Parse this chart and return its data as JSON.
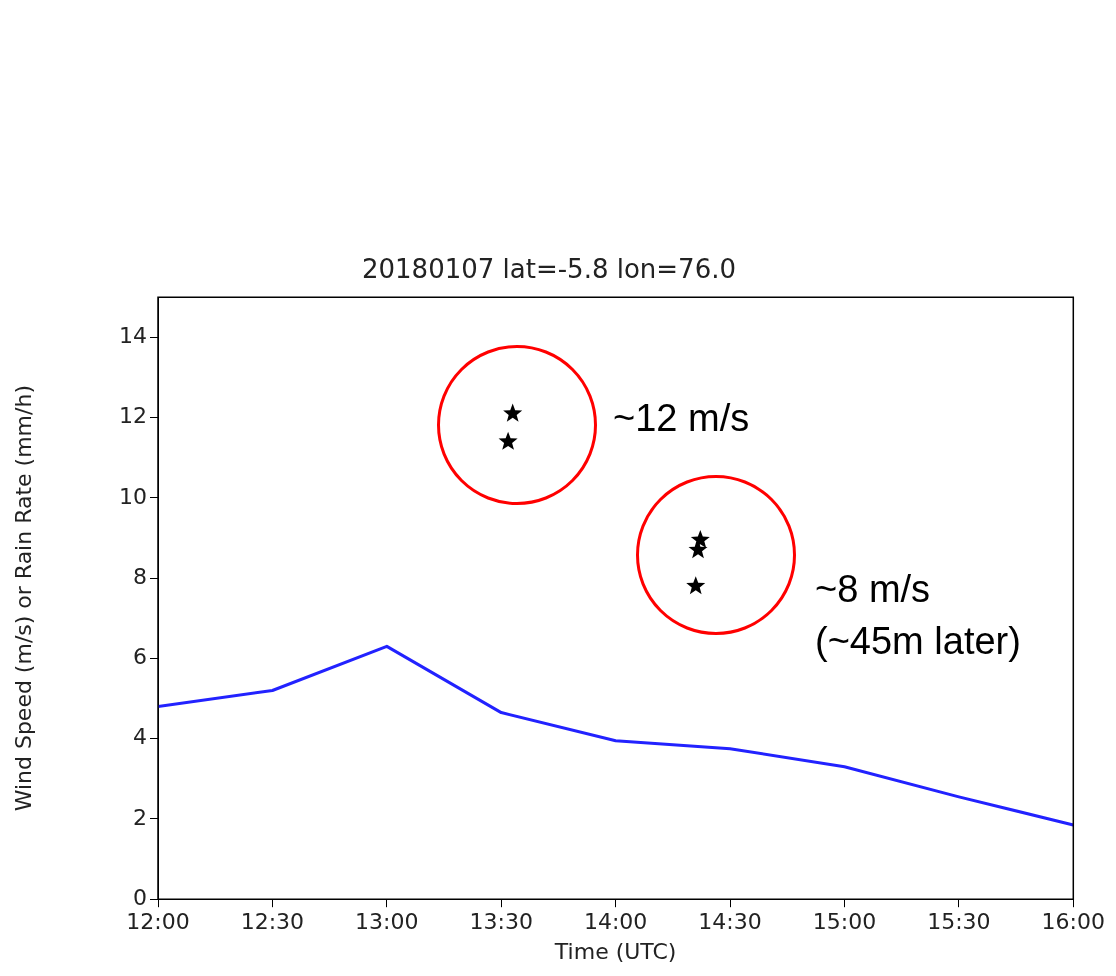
{
  "chart_data": {
    "type": "line",
    "title": "20180107 lat=-5.8 lon=76.0",
    "xlabel": "Time (UTC)",
    "ylabel": "Wind Speed (m/s) or Rain Rate (mm/h)",
    "x": [
      12,
      12.5,
      13,
      13.5,
      14,
      14.5,
      15,
      15.5,
      16
    ],
    "series": [
      {
        "type": "line",
        "color": "#2222ff",
        "marker": "none",
        "values": [
          4.8,
          5.2,
          6.3,
          4.65,
          3.95,
          3.75,
          3.3,
          2.55,
          1.85
        ]
      },
      {
        "type": "scatter",
        "color": "#000000",
        "marker": "star",
        "x": [
          13.55,
          13.53,
          14.37,
          14.36,
          14.35
        ],
        "values": [
          12.1,
          11.4,
          8.95,
          8.7,
          7.8
        ]
      }
    ],
    "xlim": [
      12,
      16
    ],
    "xticks": [
      {
        "value": 12,
        "label": "12:00"
      },
      {
        "value": 12.5,
        "label": "12:30"
      },
      {
        "value": 13,
        "label": "13:00"
      },
      {
        "value": 13.5,
        "label": "13:30"
      },
      {
        "value": 14,
        "label": "14:00"
      },
      {
        "value": 14.5,
        "label": "14:30"
      },
      {
        "value": 15,
        "label": "15:00"
      },
      {
        "value": 15.5,
        "label": "15:30"
      },
      {
        "value": 16,
        "label": "16:00"
      }
    ],
    "ylim": [
      0,
      15
    ],
    "yticks": [
      0,
      2,
      4,
      6,
      8,
      10,
      12,
      14
    ],
    "grid": false,
    "legend": false,
    "annotations": [
      "~12 m/s",
      "~8 m/s (~45m later)"
    ]
  }
}
